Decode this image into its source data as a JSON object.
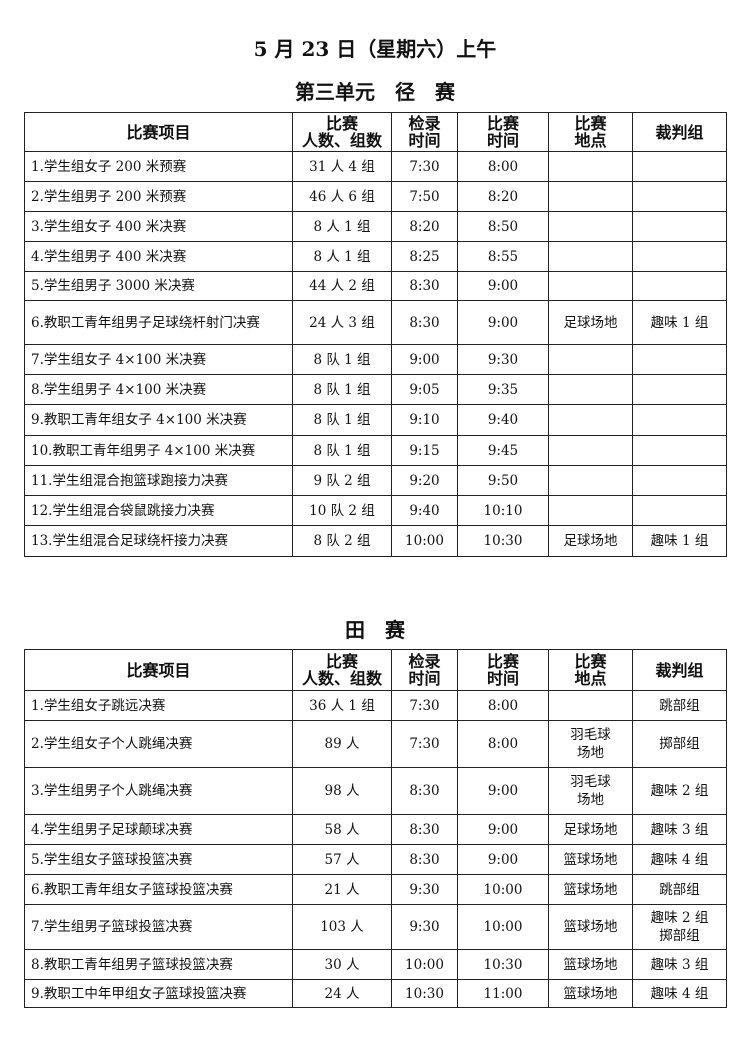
{
  "date_title": "5 月 23 日（星期六）上午",
  "track": {
    "title": "第三单元　径　赛",
    "headers": [
      "比赛项目",
      "比赛\n人数、组数",
      "检录\n时间",
      "比赛\n时间",
      "比赛\n地点",
      "裁判组"
    ],
    "rows": [
      [
        "1.学生组女子 200 米预赛",
        "31 人 4 组",
        "7:30",
        "8:00",
        "",
        ""
      ],
      [
        "2.学生组男子 200 米预赛",
        "46 人 6 组",
        "7:50",
        "8:20",
        "",
        ""
      ],
      [
        "3.学生组女子 400 米决赛",
        "8 人 1 组",
        "8:20",
        "8:50",
        "",
        ""
      ],
      [
        "4.学生组男子 400 米决赛",
        "8 人 1 组",
        "8:25",
        "8:55",
        "",
        ""
      ],
      [
        "5.学生组男子 3000 米决赛",
        "44 人 2 组",
        "8:30",
        "9:00",
        "",
        ""
      ],
      [
        "6.教职工青年组男子足球绕杆射门决赛",
        "24 人 3 组",
        "8:30",
        "9:00",
        "足球场地",
        "趣味 1 组"
      ],
      [
        "7.学生组女子 4×100 米决赛",
        "8 队 1 组",
        "9:00",
        "9:30",
        "",
        ""
      ],
      [
        "8.学生组男子 4×100 米决赛",
        "8 队 1 组",
        "9:05",
        "9:35",
        "",
        ""
      ],
      [
        "9.教职工青年组女子 4×100 米决赛",
        "8 队 1 组",
        "9:10",
        "9:40",
        "",
        ""
      ],
      [
        "10.教职工青年组男子 4×100 米决赛",
        "8 队 1 组",
        "9:15",
        "9:45",
        "",
        ""
      ],
      [
        "11.学生组混合抱篮球跑接力决赛",
        "9 队 2 组",
        "9:20",
        "9:50",
        "",
        ""
      ],
      [
        "12.学生组混合袋鼠跳接力决赛",
        "10 队 2 组",
        "9:40",
        "10:10",
        "",
        ""
      ],
      [
        "13.学生组混合足球绕杆接力决赛",
        "8 队 2 组",
        "10:00",
        "10:30",
        "足球场地",
        "趣味 1 组"
      ]
    ]
  },
  "field": {
    "title": "田　赛",
    "headers": [
      "比赛项目",
      "比赛\n人数、组数",
      "检录\n时间",
      "比赛\n时间",
      "比赛\n地点",
      "裁判组"
    ],
    "rows": [
      [
        "1.学生组女子跳远决赛",
        "36 人 1 组",
        "7:30",
        "8:00",
        "",
        "跳部组"
      ],
      [
        "2.学生组女子个人跳绳决赛",
        "89 人",
        "7:30",
        "8:00",
        "羽毛球\n场地",
        "掷部组"
      ],
      [
        "3.学生组男子个人跳绳决赛",
        "98 人",
        "8:30",
        "9:00",
        "羽毛球\n场地",
        "趣味 2 组"
      ],
      [
        "4.学生组男子足球颠球决赛",
        "58 人",
        "8:30",
        "9:00",
        "足球场地",
        "趣味 3 组"
      ],
      [
        "5.学生组女子篮球投篮决赛",
        "57 人",
        "8:30",
        "9:00",
        "篮球场地",
        "趣味 4 组"
      ],
      [
        "6.教职工青年组女子篮球投篮决赛",
        "21 人",
        "9:30",
        "10:00",
        "篮球场地",
        "跳部组"
      ],
      [
        "7.学生组男子篮球投篮决赛",
        "103 人",
        "9:30",
        "10:00",
        "篮球场地",
        "趣味 2 组\n掷部组"
      ],
      [
        "8.教职工青年组男子篮球投篮决赛",
        "30 人",
        "10:00",
        "10:30",
        "篮球场地",
        "趣味 3 组"
      ],
      [
        "9.教职工中年甲组女子篮球投篮决赛",
        "24 人",
        "10:30",
        "11:00",
        "篮球场地",
        "趣味 4 组"
      ]
    ]
  }
}
